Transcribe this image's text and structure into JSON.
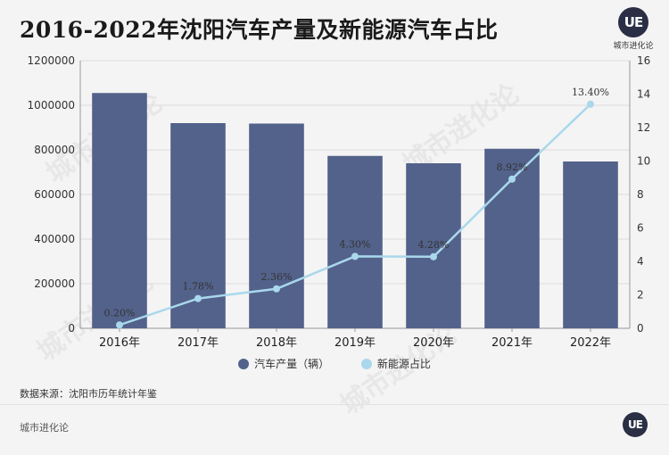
{
  "title": "2016-2022年沈阳汽车产量及新能源汽车占比",
  "logo": {
    "badge": "UE",
    "text": "城市进化论"
  },
  "source": "数据来源：沈阳市历年统计年鉴",
  "footer": {
    "text": "城市进化论",
    "badge": "UE"
  },
  "watermark": "城市进化论",
  "chart_data": {
    "type": "bar",
    "categories": [
      "2016年",
      "2017年",
      "2018年",
      "2019年",
      "2020年",
      "2021年",
      "2022年"
    ],
    "series": [
      {
        "name": "汽车产量（辆）",
        "type": "bar",
        "axis": "left",
        "color": "#53628b",
        "values": [
          1055000,
          920000,
          918000,
          773000,
          740000,
          805000,
          748000
        ]
      },
      {
        "name": "新能源占比",
        "type": "line",
        "axis": "right",
        "color": "#a9d8ec",
        "values": [
          0.2,
          1.78,
          2.36,
          4.3,
          4.28,
          8.92,
          13.4
        ],
        "labels": [
          "0.20%",
          "1.78%",
          "2.36%",
          "4.30%",
          "4.28%",
          "8.92%",
          "13.40%"
        ]
      }
    ],
    "ylim_left": [
      0,
      1200000
    ],
    "yticks_left": [
      0,
      200000,
      400000,
      600000,
      800000,
      1000000,
      1200000
    ],
    "ylim_right": [
      0,
      16
    ],
    "yticks_right": [
      0,
      2,
      4,
      6,
      8,
      10,
      12,
      14,
      16
    ],
    "grid": true,
    "legend_position": "bottom"
  }
}
